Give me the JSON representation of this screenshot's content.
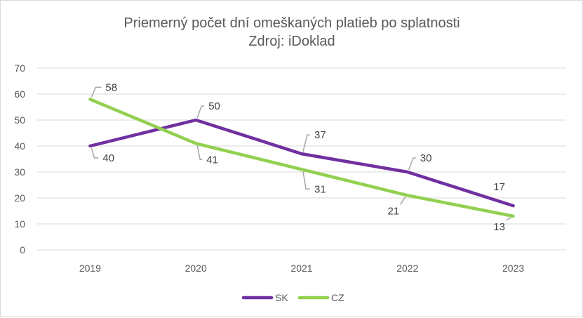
{
  "chart_data": {
    "type": "line",
    "title": "Priemerný počet dní omeškaných platieb po splatnosti",
    "subtitle": "Zdroj: iDoklad",
    "categories": [
      "2019",
      "2020",
      "2021",
      "2022",
      "2023"
    ],
    "series": [
      {
        "name": "SK",
        "values": [
          40,
          50,
          37,
          30,
          17
        ],
        "color": "#7030a0"
      },
      {
        "name": "CZ",
        "values": [
          58,
          41,
          31,
          21,
          13
        ],
        "color": "#92d050"
      }
    ],
    "yticks": [
      "0",
      "10",
      "20",
      "30",
      "40",
      "50",
      "60",
      "70"
    ],
    "ylim": [
      0,
      70
    ],
    "xlabel": "",
    "ylabel": "",
    "grid": true,
    "legend": "bottom-center"
  }
}
